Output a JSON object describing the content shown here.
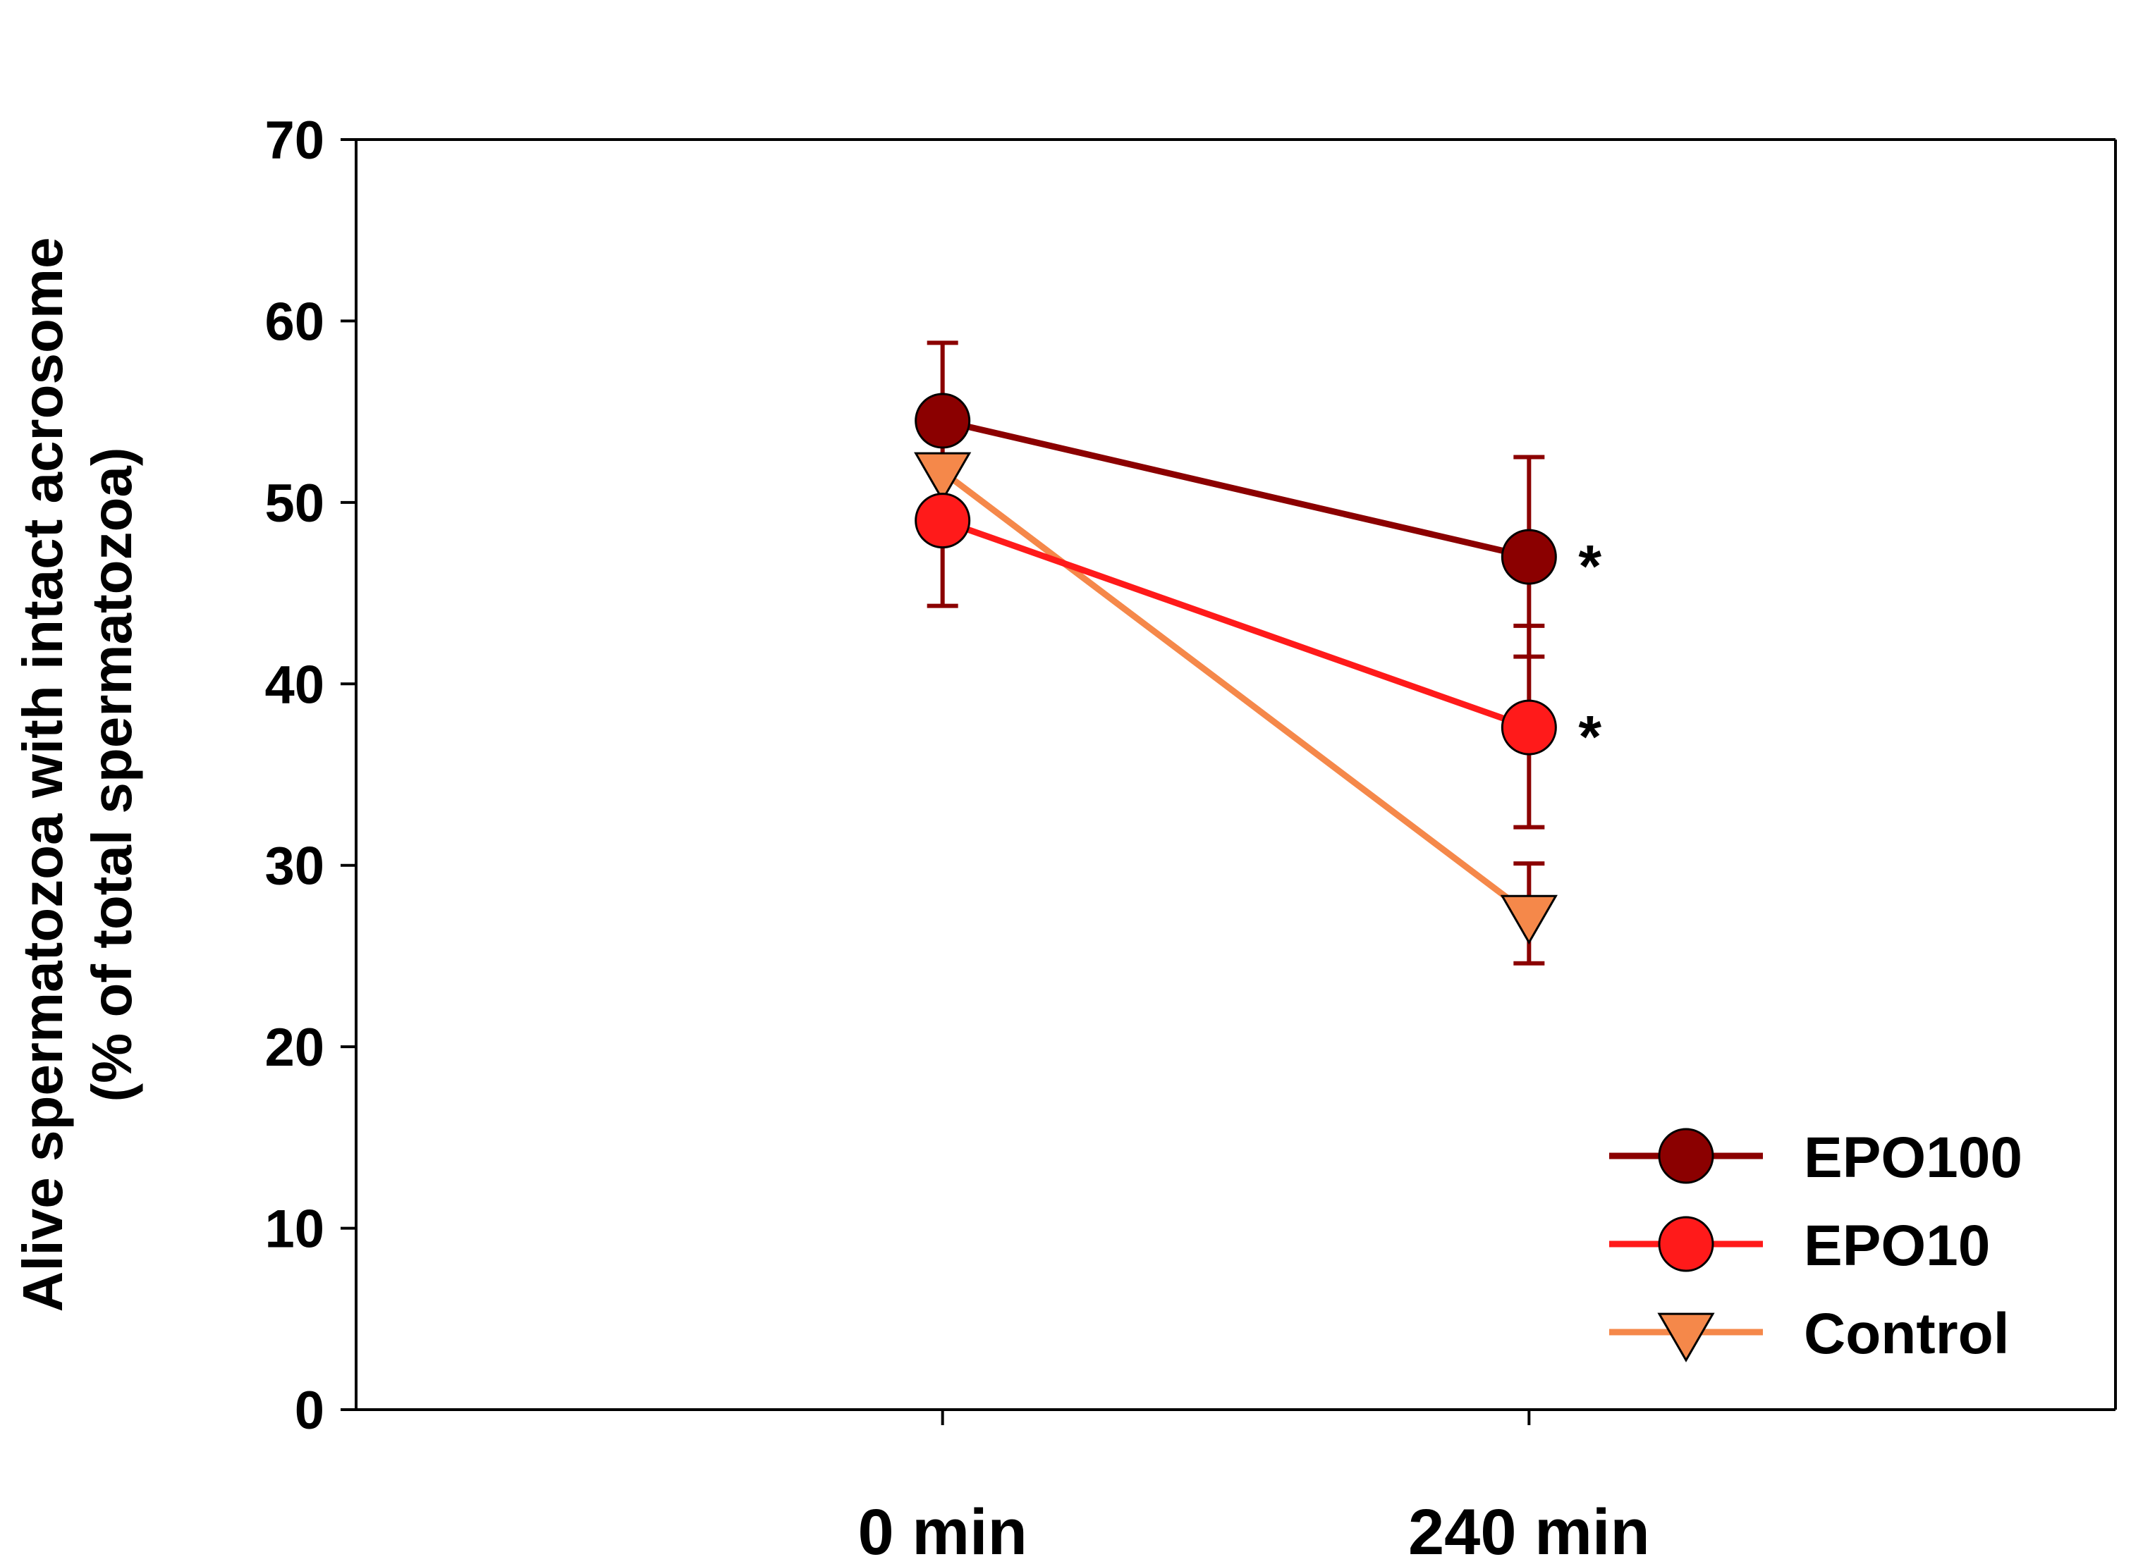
{
  "chart_data": {
    "type": "line",
    "categories": [
      "0 min",
      "240 min"
    ],
    "xlim": [
      -1,
      2
    ],
    "ylim": [
      0,
      70
    ],
    "yticks": [
      0,
      10,
      20,
      30,
      40,
      50,
      60,
      70
    ],
    "ylabel_line1": "Alive spermatozoa with intact acrosome",
    "ylabel_line2": "(% of total spermatozoa)",
    "grid": false,
    "legend_position": "bottom-right",
    "series": [
      {
        "name": "EPO100",
        "values": [
          54.5,
          47.0
        ],
        "error_upper": [
          58.8,
          52.5
        ],
        "error_lower": [
          44.3,
          41.5
        ],
        "annotations": [
          "",
          "*"
        ],
        "color": "#8B0000",
        "marker": "circle"
      },
      {
        "name": "EPO10",
        "values": [
          49.0,
          37.6
        ],
        "error_upper": [
          49.0,
          43.2
        ],
        "error_lower": [
          49.0,
          32.1
        ],
        "annotations": [
          "",
          "*"
        ],
        "color": "#FF1A1A",
        "marker": "circle"
      },
      {
        "name": "Control",
        "values": [
          51.7,
          27.3
        ],
        "error_upper": [
          51.7,
          30.1
        ],
        "error_lower": [
          51.7,
          24.6
        ],
        "annotations": [
          "",
          ""
        ],
        "color": "#F5884A",
        "marker": "triangle-down"
      }
    ]
  }
}
